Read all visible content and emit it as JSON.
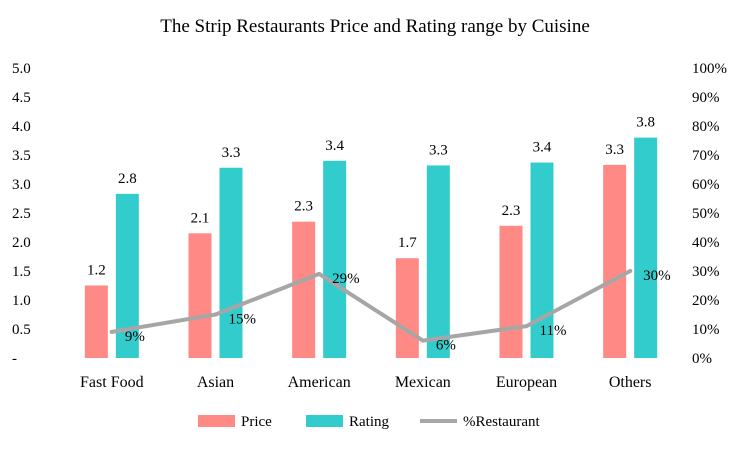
{
  "chart_data": {
    "type": "bar",
    "title": "The Strip Restaurants Price and Rating range by Cuisine",
    "categories": [
      "Fast Food",
      "Asian",
      "American",
      "Mexican",
      "European",
      "Others"
    ],
    "series": [
      {
        "name": "Price",
        "kind": "bar",
        "axis": "left",
        "color": "#ff8a85",
        "values": [
          1.25,
          2.15,
          2.35,
          1.72,
          2.28,
          3.33
        ],
        "labels": [
          "1.2",
          "2.1",
          "2.3",
          "1.7",
          "2.3",
          "3.3"
        ]
      },
      {
        "name": "Rating",
        "kind": "bar",
        "axis": "left",
        "color": "#33cccc",
        "values": [
          2.83,
          3.28,
          3.4,
          3.32,
          3.37,
          3.8
        ],
        "labels": [
          "2.8",
          "3.3",
          "3.4",
          "3.3",
          "3.4",
          "3.8"
        ]
      },
      {
        "name": "%Restaurant",
        "kind": "line",
        "axis": "right",
        "color": "#a6a6a6",
        "values": [
          0.09,
          0.15,
          0.29,
          0.06,
          0.11,
          0.3
        ],
        "labels": [
          "9%",
          "15%",
          "29%",
          "6%",
          "11%",
          "30%"
        ]
      }
    ],
    "y_left": {
      "ylim": [
        0,
        5
      ],
      "ticks": [
        "-",
        "0.5",
        "1.0",
        "1.5",
        "2.0",
        "2.5",
        "3.0",
        "3.5",
        "4.0",
        "4.5",
        "5.0"
      ]
    },
    "y_right": {
      "ylim": [
        0,
        1
      ],
      "ticks": [
        "0%",
        "10%",
        "20%",
        "30%",
        "40%",
        "50%",
        "60%",
        "70%",
        "80%",
        "90%",
        "100%"
      ]
    },
    "grid": false,
    "legend": "bottom"
  }
}
